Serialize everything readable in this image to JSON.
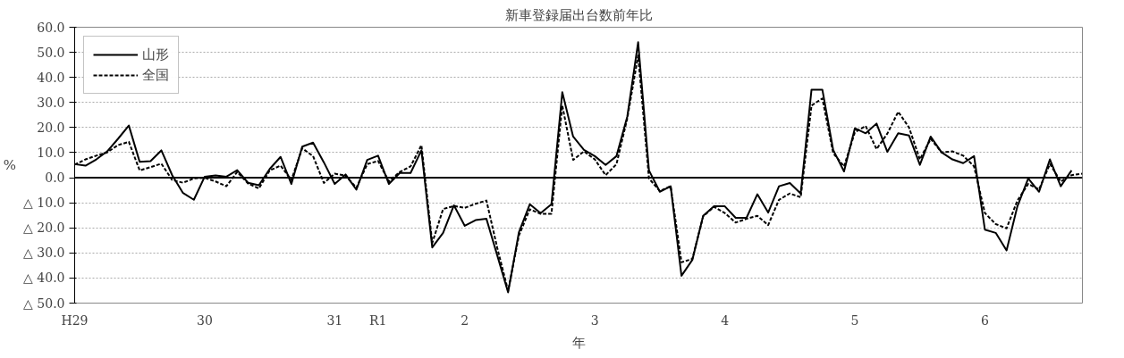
{
  "chart_data": {
    "type": "line",
    "title": "新車登録届出台数前年比",
    "ylabel": "%",
    "xlabel": "年",
    "categories": [
      "H29",
      null,
      null,
      null,
      null,
      null,
      null,
      null,
      null,
      null,
      null,
      null,
      "30",
      null,
      null,
      null,
      null,
      null,
      null,
      null,
      null,
      null,
      null,
      null,
      "31",
      null,
      null,
      null,
      "R1",
      null,
      null,
      null,
      null,
      null,
      null,
      null,
      "2",
      null,
      null,
      null,
      null,
      null,
      null,
      null,
      null,
      null,
      null,
      null,
      "3",
      null,
      null,
      null,
      null,
      null,
      null,
      null,
      null,
      null,
      null,
      null,
      "4",
      null,
      null,
      null,
      null,
      null,
      null,
      null,
      null,
      null,
      null,
      null,
      "5",
      null,
      null,
      null,
      null,
      null,
      null,
      null,
      null,
      null,
      null,
      null,
      "6",
      null,
      null,
      null,
      null,
      null,
      null,
      null,
      null,
      null
    ],
    "ylim": [
      -50,
      60
    ],
    "yticks": [
      {
        "value": 60,
        "label": "60.0"
      },
      {
        "value": 50,
        "label": "50.0"
      },
      {
        "value": 40,
        "label": "40.0"
      },
      {
        "value": 30,
        "label": "30.0"
      },
      {
        "value": 20,
        "label": "20.0"
      },
      {
        "value": 10,
        "label": "10.0"
      },
      {
        "value": 0,
        "label": "0.0"
      },
      {
        "value": -10,
        "label": "△ 10.0"
      },
      {
        "value": -20,
        "label": "△ 20.0"
      },
      {
        "value": -30,
        "label": "△ 30.0"
      },
      {
        "value": -40,
        "label": "△ 40.0"
      },
      {
        "value": -50,
        "label": "△ 50.0"
      }
    ],
    "grid": "y",
    "legend": "top left",
    "marker": "none",
    "ref_lines": [
      {
        "axis": "y",
        "value": 0,
        "color": "#000000",
        "line_style": "solid"
      }
    ],
    "series": [
      {
        "name": "山形",
        "color": "#000000",
        "line_style": "solid",
        "values": [
          5.4,
          4.8,
          7.3,
          10.5,
          15.5,
          20.8,
          6.3,
          6.6,
          10.9,
          1.0,
          -6.1,
          -8.8,
          0.4,
          0.9,
          0.4,
          3.0,
          -2.0,
          -3.0,
          3.5,
          8.3,
          -2.5,
          12.4,
          14.0,
          6.1,
          -2.5,
          1.3,
          -4.8,
          7.1,
          8.8,
          -2.5,
          1.9,
          1.9,
          10.9,
          -27.8,
          -22.0,
          -11.0,
          -19.2,
          -16.9,
          -16.4,
          -31.0,
          -45.7,
          -21.7,
          -10.6,
          -14.1,
          -10.6,
          34.1,
          16.4,
          11.1,
          8.6,
          5.1,
          8.6,
          24.4,
          54.0,
          2.9,
          -5.6,
          -3.4,
          -39.1,
          -32.8,
          -15.2,
          -11.4,
          -11.4,
          -16.0,
          -16.0,
          -6.6,
          -13.9,
          -3.4,
          -2.1,
          -6.3,
          35.1,
          35.1,
          11.1,
          2.5,
          19.7,
          17.7,
          21.6,
          10.3,
          17.7,
          16.8,
          5.1,
          16.4,
          10.1,
          7.3,
          5.8,
          8.6,
          -20.7,
          -22.0,
          -29.0,
          -11.4,
          -0.3,
          -5.6,
          7.3,
          -3.4,
          2.9,
          null
        ]
      },
      {
        "name": "全国",
        "color": "#000000",
        "line_style": "dashed",
        "values": [
          5.2,
          7.3,
          8.8,
          10.1,
          13.0,
          14.3,
          2.9,
          4.2,
          5.6,
          -0.9,
          -2.0,
          -0.3,
          0.0,
          -1.5,
          -3.4,
          2.3,
          -2.3,
          -4.3,
          2.9,
          4.8,
          -0.9,
          11.7,
          8.6,
          -2.1,
          1.6,
          0.8,
          -4.0,
          5.4,
          6.7,
          -1.5,
          2.3,
          4.5,
          13.0,
          -26.0,
          -12.5,
          -11.3,
          -12.0,
          -10.4,
          -9.1,
          -28.0,
          -45.1,
          -23.0,
          -12.6,
          -14.4,
          -14.4,
          28.8,
          7.1,
          10.5,
          7.3,
          1.0,
          5.4,
          23.7,
          48.7,
          -0.3,
          -5.3,
          -3.4,
          -33.7,
          -32.4,
          -15.4,
          -11.6,
          -14.1,
          -17.9,
          -16.4,
          -15.2,
          -18.9,
          -8.8,
          -6.3,
          -7.8,
          28.8,
          31.6,
          9.8,
          4.5,
          18.1,
          20.6,
          11.4,
          17.6,
          26.3,
          20.0,
          7.3,
          15.5,
          10.1,
          10.5,
          8.8,
          4.5,
          -14.1,
          -18.5,
          -20.2,
          -9.1,
          -2.5,
          -4.7,
          5.5,
          -1.5,
          1.0,
          1.6
        ]
      }
    ]
  }
}
